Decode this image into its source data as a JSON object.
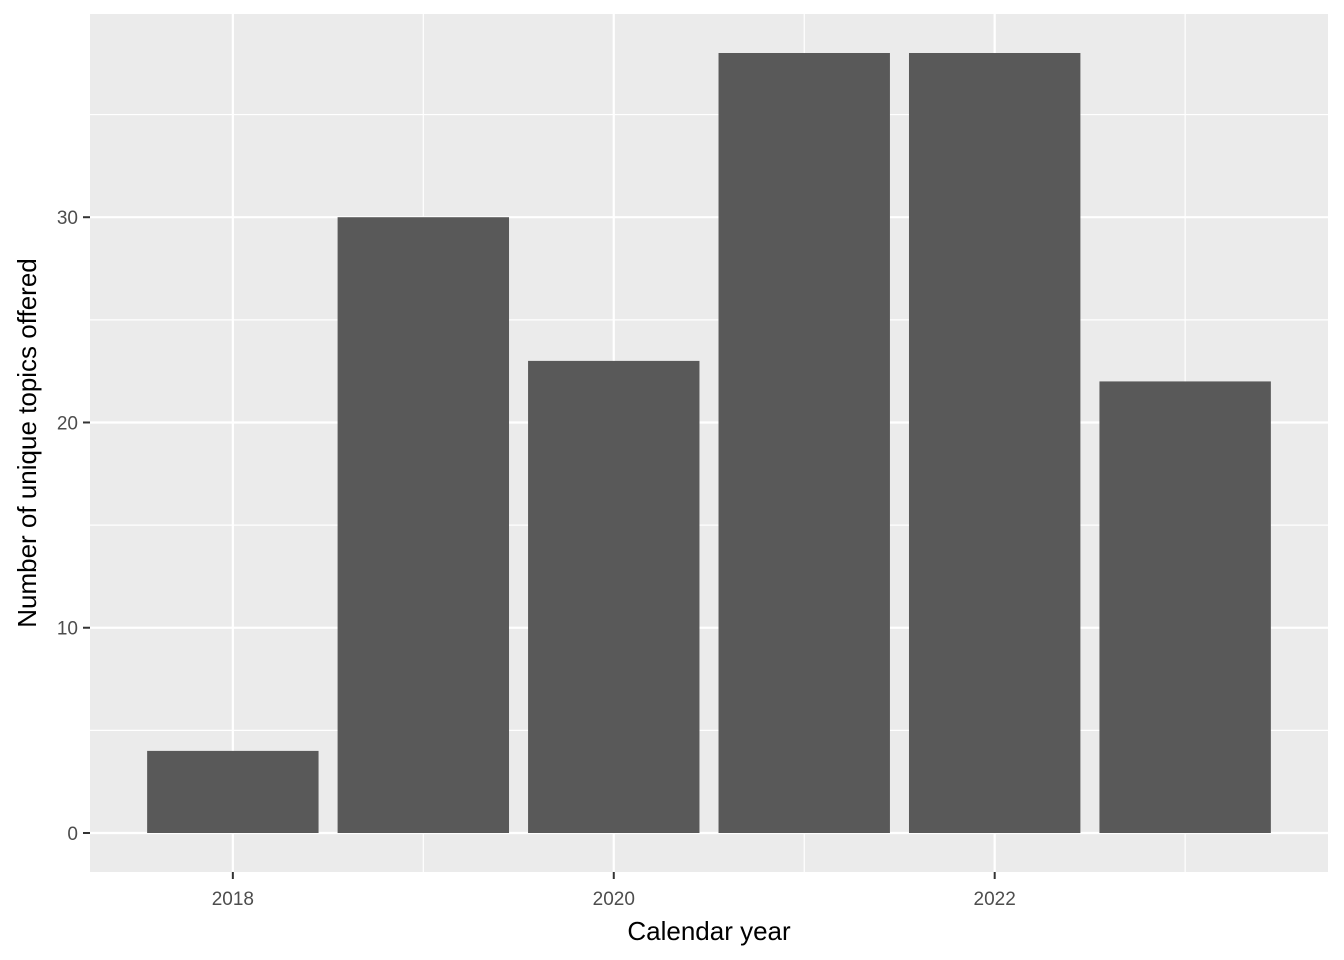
{
  "chart_data": {
    "type": "bar",
    "x": [
      2018,
      2019,
      2020,
      2021,
      2022,
      2023
    ],
    "values": [
      4,
      30,
      23,
      38,
      38,
      22
    ],
    "xlabel": "Calendar year",
    "ylabel": "Number of unique topics offered",
    "xlim": [
      2017.25,
      2023.75
    ],
    "ylim": [
      -1.9,
      39.9
    ],
    "x_ticks": [
      2018,
      2020,
      2022
    ],
    "x_tick_labels": [
      "2018",
      "2020",
      "2022"
    ],
    "x_minor_ticks": [
      2019,
      2021,
      2023
    ],
    "y_ticks": [
      0,
      10,
      20,
      30
    ],
    "y_tick_labels": [
      "0",
      "10",
      "20",
      "30"
    ],
    "y_minor_ticks": [
      5,
      15,
      25,
      35
    ],
    "grid": true,
    "bar_color": "#595959",
    "panel_color": "#ebebeb",
    "grid_color": "#ffffff",
    "tick_color": "#333333"
  }
}
